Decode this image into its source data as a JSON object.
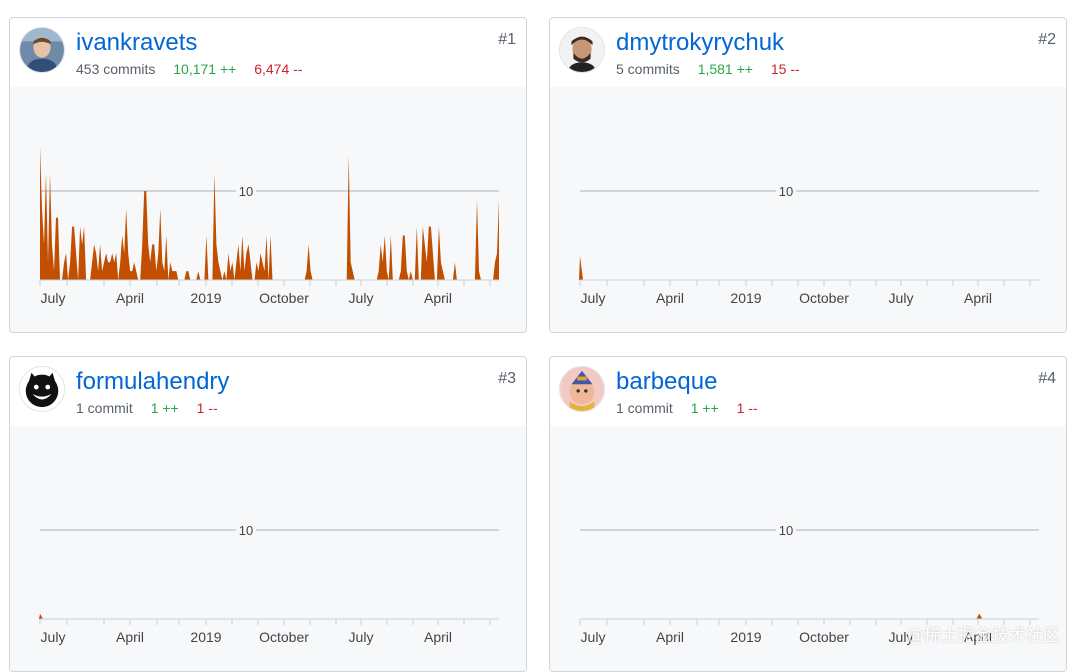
{
  "colors": {
    "link": "#0366d6",
    "additions": "#28a745",
    "deletions": "#cb2431",
    "chart_fill": "#c24f00",
    "gridline": "#d1d5da",
    "muted": "#586069",
    "chart_bg": "#f6f8fa"
  },
  "contributors": [
    {
      "rank": "#1",
      "username": "ivankravets",
      "commits": "453 commits",
      "additions": "10,171 ++",
      "deletions": "6,474 --",
      "avatar_icon": "user-photo-avatar-icon",
      "chart_data": {
        "type": "area",
        "ylim": [
          0,
          15
        ],
        "gridline_label": "10",
        "x_tick_labels": [
          "July",
          "April",
          "2019",
          "October",
          "July",
          "April"
        ],
        "values": [
          15,
          8,
          4,
          12,
          2,
          3,
          4,
          1,
          7,
          1,
          0,
          0,
          2,
          3,
          0,
          2,
          6,
          4,
          3,
          0,
          6,
          4,
          3,
          0,
          0,
          0,
          2,
          4,
          3,
          1,
          0,
          1,
          2,
          3,
          2,
          2,
          3,
          2,
          3,
          0,
          2,
          5,
          3,
          8,
          3,
          1,
          1,
          2,
          1,
          0,
          0,
          4,
          10,
          3,
          4,
          2,
          4,
          4,
          1,
          3,
          8,
          2,
          1,
          5,
          0,
          2,
          1,
          1,
          1,
          0,
          0,
          0,
          0,
          1,
          0,
          0,
          0,
          0,
          0,
          1,
          0,
          0,
          0,
          5,
          0,
          0,
          0,
          12,
          4,
          2,
          1,
          0,
          1,
          0,
          3,
          1,
          2,
          0,
          2,
          4,
          1,
          0,
          1,
          3,
          4,
          2,
          0,
          0,
          2,
          1,
          3,
          2,
          1,
          5,
          0,
          0,
          0,
          0,
          0,
          0,
          0,
          0,
          0,
          0,
          0,
          0,
          0,
          0,
          0,
          0,
          0,
          0,
          0,
          0,
          4,
          1,
          0,
          0,
          0,
          0,
          0,
          0,
          0,
          0,
          0,
          0,
          0,
          0,
          0,
          0,
          0,
          0,
          0,
          0,
          14,
          2,
          1,
          0,
          0,
          0,
          0,
          0,
          0,
          0,
          0,
          0,
          0,
          0,
          0,
          1,
          4,
          2,
          5,
          1,
          0,
          0,
          0,
          0,
          0,
          0,
          1,
          5,
          2,
          1,
          0,
          1,
          0,
          0,
          0,
          0,
          0,
          0,
          4,
          2,
          1,
          6,
          3,
          0,
          0,
          6,
          2,
          1,
          0,
          0,
          0,
          0,
          0,
          0,
          0,
          0,
          0,
          0,
          0,
          0,
          0,
          0,
          0,
          0,
          2,
          1,
          0,
          0,
          0,
          0,
          0,
          0,
          0,
          2,
          3,
          9
        ],
        "spikes": [
          [
            0,
            15
          ],
          [
            5,
            12
          ],
          [
            9,
            7
          ],
          [
            17,
            6
          ],
          [
            22,
            6
          ],
          [
            30,
            4
          ],
          [
            43,
            8
          ],
          [
            53,
            10
          ],
          [
            60,
            8
          ],
          [
            74,
            1
          ],
          [
            87,
            12
          ],
          [
            101,
            5
          ],
          [
            115,
            5
          ],
          [
            133,
            1
          ],
          [
            154,
            14
          ],
          [
            175,
            5
          ],
          [
            182,
            5
          ],
          [
            188,
            6
          ],
          [
            191,
            6
          ],
          [
            194,
            6
          ],
          [
            207,
            2
          ],
          [
            218,
            9
          ]
        ]
      }
    },
    {
      "rank": "#2",
      "username": "dmytrokyrychuk",
      "commits": "5 commits",
      "additions": "1,581 ++",
      "deletions": "15 --",
      "avatar_icon": "user-photo-avatar-icon",
      "chart_data": {
        "type": "area",
        "ylim": [
          0,
          15
        ],
        "gridline_label": "10",
        "x_tick_labels": [
          "July",
          "April",
          "2019",
          "October",
          "July",
          "April"
        ],
        "values": [
          3,
          0
        ]
      }
    },
    {
      "rank": "#3",
      "username": "formulahendry",
      "commits": "1 commit",
      "additions": "1 ++",
      "deletions": "1 --",
      "avatar_icon": "black-cat-avatar-icon",
      "chart_data": {
        "type": "area",
        "ylim": [
          0,
          15
        ],
        "gridline_label": "10",
        "x_tick_labels": [
          "July",
          "April",
          "2019",
          "October",
          "July",
          "April"
        ],
        "values": [
          1,
          0
        ]
      }
    },
    {
      "rank": "#4",
      "username": "barbeque",
      "commits": "1 commit",
      "additions": "1 ++",
      "deletions": "1 --",
      "avatar_icon": "cartoon-character-avatar-icon",
      "chart_data": {
        "type": "area",
        "ylim": [
          0,
          15
        ],
        "gridline_label": "10",
        "x_tick_labels": [
          "July",
          "April",
          "2019",
          "October",
          "July",
          "April"
        ],
        "values": [
          0,
          1,
          0
        ],
        "event_index_fraction": 0.87
      }
    }
  ],
  "watermark": "@稀土掘金技术社区"
}
